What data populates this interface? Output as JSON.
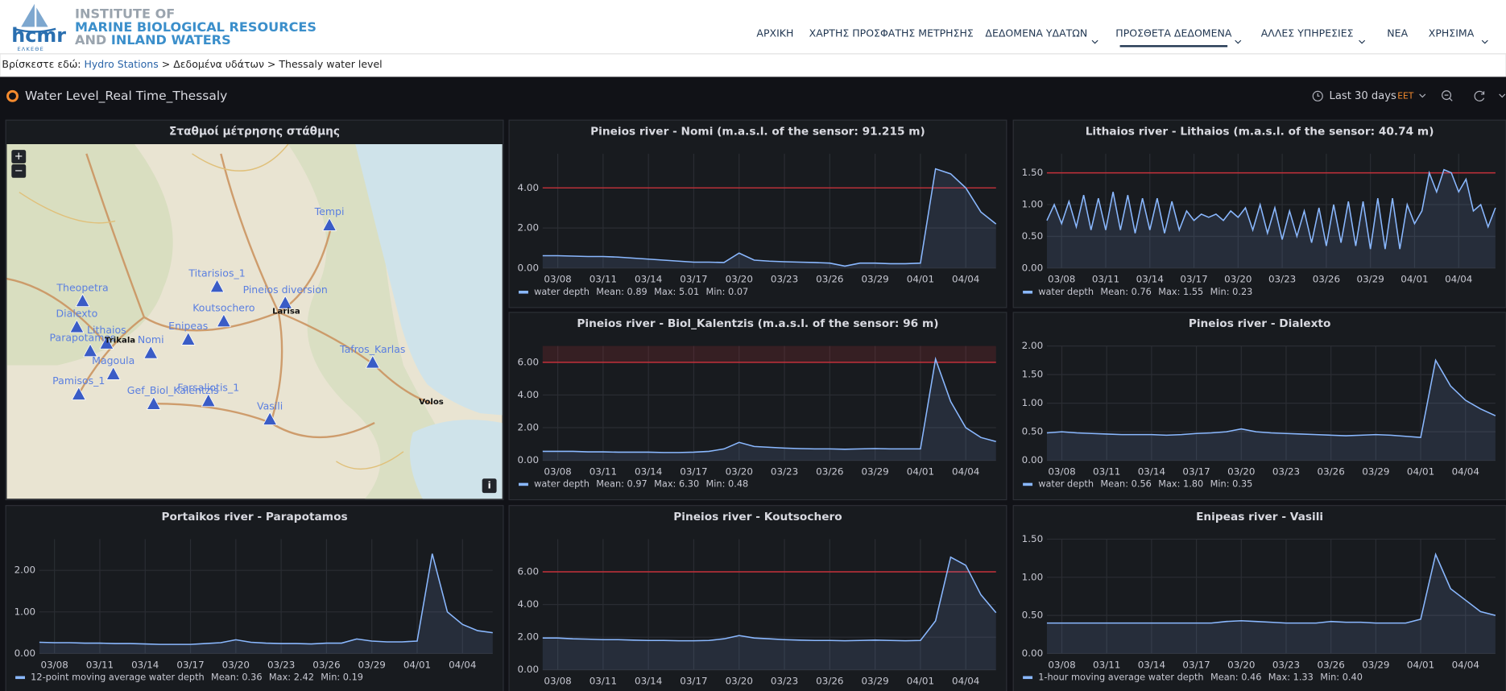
{
  "header": {
    "logo": "hcmr",
    "logo_sub": "ΕΛΚΕΘΕ",
    "line1": "INSTITUTE OF",
    "line2": "MARINE BIOLOGICAL RESOURCES",
    "line3a": "AND",
    "line3b": "INLAND WATERS",
    "nav": [
      "ΑΡΧΙΚΗ",
      "ΧΑΡΤΗΣ ΠΡΟΣΦΑΤΗΣ ΜΕΤΡΗΣΗΣ",
      "ΔΕΔΟΜΕΝΑ ΥΔΑΤΩΝ",
      "ΠΡΟΣΘΕΤΑ ΔΕΔΟΜΕΝΑ",
      "ΑΛΛΕΣ ΥΠΗΡΕΣΙΕΣ",
      "ΝΕΑ",
      "ΧΡΗΣΙΜΑ"
    ]
  },
  "breadcrumb": {
    "label": "Βρίσκεστε εδώ:",
    "items": [
      "Hydro Stations",
      "Δεδομένα υδάτων",
      "Thessaly water level"
    ],
    "separator": ">"
  },
  "dashboard": {
    "title": "Water Level_Real Time_Thessaly",
    "time_range": "Last 30 days",
    "timezone": "EET"
  },
  "map_panel": {
    "title": "Σταθμοί μέτρησης στάθμης",
    "zoom_in": "+",
    "zoom_out": "−",
    "info": "i",
    "stations": [
      "Tempi",
      "Theopetra",
      "Dialexto",
      "Titarisios_1",
      "Pineios diversion",
      "Koutsochero",
      "Enipeas",
      "Lithaios",
      "Parapotamos",
      "Nomi",
      "Magoula",
      "Tafros_Karlas",
      "Pamisos_1",
      "Gef_Biol_Kalentzis",
      "Farsaliotis_1",
      "Vasili"
    ],
    "cities": [
      "Larisa",
      "Volos",
      "Trikala"
    ]
  },
  "chart_data": [
    {
      "type": "line",
      "title": "Pineios river - Nomi (m.a.s.l. of the sensor: 91.215 m)",
      "categories": [
        null,
        "03/08",
        null,
        null,
        "03/11",
        null,
        null,
        "03/14",
        null,
        null,
        "03/17",
        null,
        null,
        "03/20",
        null,
        null,
        "03/23",
        null,
        null,
        "03/26",
        null,
        null,
        "03/29",
        null,
        null,
        "04/01",
        null,
        null,
        "04/04",
        null,
        null
      ],
      "series": [
        {
          "name": "water depth",
          "color": "#8ab8ff",
          "values": [
            0.62,
            0.62,
            0.6,
            0.58,
            0.58,
            0.55,
            0.5,
            0.45,
            0.4,
            0.35,
            0.3,
            0.3,
            0.28,
            0.75,
            0.4,
            0.35,
            0.32,
            0.3,
            0.28,
            0.25,
            0.1,
            0.25,
            0.25,
            0.22,
            0.22,
            0.25,
            4.95,
            4.7,
            4.0,
            2.8,
            2.2
          ]
        }
      ],
      "legend_stats": [
        "Mean: 0.89",
        "Max: 5.01",
        "Min: 0.07"
      ],
      "ylim": [
        0,
        5.7
      ],
      "yticks": [
        {
          "value": 0,
          "label": "0.00"
        },
        {
          "value": 2,
          "label": "2.00"
        },
        {
          "value": 4,
          "label": "4.00"
        }
      ],
      "threshold": 4,
      "threshold_color": "#c4313a",
      "threshold_region": false,
      "grid": true
    },
    {
      "type": "line",
      "title": "Lithaios river - Lithaios (m.a.s.l. of the sensor: 40.74 m)",
      "categories": [
        null,
        null,
        "03/08",
        null,
        null,
        null,
        null,
        null,
        "03/11",
        null,
        null,
        null,
        null,
        null,
        "03/14",
        null,
        null,
        null,
        null,
        null,
        "03/17",
        null,
        null,
        null,
        null,
        null,
        "03/20",
        null,
        null,
        null,
        null,
        null,
        "03/23",
        null,
        null,
        null,
        null,
        null,
        "03/26",
        null,
        null,
        null,
        null,
        null,
        "03/29",
        null,
        null,
        null,
        null,
        null,
        "04/01",
        null,
        null,
        null,
        null,
        null,
        "04/04",
        null,
        null,
        null,
        null,
        null
      ],
      "series": [
        {
          "name": "water depth",
          "color": "#8ab8ff",
          "values": [
            0.75,
            1.0,
            0.7,
            1.05,
            0.65,
            1.15,
            0.6,
            1.1,
            0.6,
            1.2,
            0.6,
            1.15,
            0.55,
            1.1,
            0.6,
            1.1,
            0.55,
            1.05,
            0.6,
            0.9,
            0.75,
            0.85,
            0.8,
            0.85,
            0.75,
            0.9,
            0.8,
            0.95,
            0.6,
            1.0,
            0.55,
            0.95,
            0.45,
            0.9,
            0.5,
            0.9,
            0.4,
            0.95,
            0.35,
            1.0,
            0.4,
            1.05,
            0.35,
            1.05,
            0.3,
            1.1,
            0.3,
            1.1,
            0.3,
            1.0,
            0.7,
            0.9,
            1.5,
            1.2,
            1.55,
            1.5,
            1.2,
            1.4,
            0.9,
            1.0,
            0.65,
            0.95
          ]
        }
      ],
      "legend_stats": [
        "Mean: 0.76",
        "Max: 1.55",
        "Min: 0.23"
      ],
      "ylim": [
        0,
        1.8
      ],
      "yticks": [
        {
          "value": 0,
          "label": "0.00"
        },
        {
          "value": 0.5,
          "label": "0.50"
        },
        {
          "value": 1,
          "label": "1.00"
        },
        {
          "value": 1.5,
          "label": "1.50"
        }
      ],
      "threshold": 1.5,
      "threshold_color": "#c4313a",
      "threshold_region": false,
      "grid": true
    },
    {
      "type": "line",
      "title": "Pineios river - Biol_Kalentzis (m.a.s.l. of the sensor: 96 m)",
      "categories": [
        null,
        "03/08",
        null,
        null,
        "03/11",
        null,
        null,
        "03/14",
        null,
        null,
        "03/17",
        null,
        null,
        "03/20",
        null,
        null,
        "03/23",
        null,
        null,
        "03/26",
        null,
        null,
        "03/29",
        null,
        null,
        "04/01",
        null,
        null,
        "04/04",
        null,
        null
      ],
      "series": [
        {
          "name": "water depth",
          "color": "#8ab8ff",
          "values": [
            0.55,
            0.55,
            0.55,
            0.52,
            0.52,
            0.5,
            0.5,
            0.5,
            0.48,
            0.48,
            0.5,
            0.55,
            0.7,
            1.1,
            0.85,
            0.8,
            0.75,
            0.72,
            0.7,
            0.7,
            0.68,
            0.7,
            0.72,
            0.7,
            0.7,
            0.7,
            6.2,
            3.6,
            2.0,
            1.4,
            1.15
          ]
        }
      ],
      "legend_stats": [
        "Mean: 0.97",
        "Max: 6.30",
        "Min: 0.48"
      ],
      "ylim": [
        0,
        7
      ],
      "yticks": [
        {
          "value": 0,
          "label": "0.00"
        },
        {
          "value": 2,
          "label": "2.00"
        },
        {
          "value": 4,
          "label": "4.00"
        },
        {
          "value": 6,
          "label": "6.00"
        }
      ],
      "threshold": 6,
      "threshold_color": "#c4313a",
      "threshold_region": true,
      "grid": true
    },
    {
      "type": "line",
      "title": "Pineios river - Dialexto",
      "categories": [
        null,
        "03/08",
        null,
        null,
        "03/11",
        null,
        null,
        "03/14",
        null,
        null,
        "03/17",
        null,
        null,
        "03/20",
        null,
        null,
        "03/23",
        null,
        null,
        "03/26",
        null,
        null,
        "03/29",
        null,
        null,
        "04/01",
        null,
        null,
        "04/04",
        null,
        null
      ],
      "series": [
        {
          "name": "water depth",
          "color": "#8ab8ff",
          "values": [
            0.48,
            0.5,
            0.48,
            0.47,
            0.46,
            0.45,
            0.45,
            0.45,
            0.44,
            0.45,
            0.47,
            0.48,
            0.5,
            0.55,
            0.5,
            0.48,
            0.47,
            0.46,
            0.45,
            0.44,
            0.43,
            0.44,
            0.45,
            0.44,
            0.42,
            0.4,
            1.75,
            1.3,
            1.05,
            0.9,
            0.78
          ]
        }
      ],
      "legend_stats": [
        "Mean: 0.56",
        "Max: 1.80",
        "Min: 0.35"
      ],
      "ylim": [
        0,
        2
      ],
      "yticks": [
        {
          "value": 0,
          "label": "0.00"
        },
        {
          "value": 0.5,
          "label": "0.50"
        },
        {
          "value": 1,
          "label": "1.00"
        },
        {
          "value": 1.5,
          "label": "1.50"
        },
        {
          "value": 2,
          "label": "2.00"
        }
      ],
      "grid": true
    },
    {
      "type": "line",
      "title": "Portaikos river - Parapotamos",
      "categories": [
        null,
        "03/08",
        null,
        null,
        "03/11",
        null,
        null,
        "03/14",
        null,
        null,
        "03/17",
        null,
        null,
        "03/20",
        null,
        null,
        "03/23",
        null,
        null,
        "03/26",
        null,
        null,
        "03/29",
        null,
        null,
        "04/01",
        null,
        null,
        "04/04",
        null,
        null
      ],
      "series": [
        {
          "name": "12-point moving average water depth",
          "color": "#8ab8ff",
          "values": [
            0.27,
            0.26,
            0.26,
            0.25,
            0.25,
            0.24,
            0.24,
            0.23,
            0.22,
            0.22,
            0.22,
            0.24,
            0.26,
            0.33,
            0.27,
            0.25,
            0.24,
            0.24,
            0.23,
            0.25,
            0.25,
            0.35,
            0.3,
            0.28,
            0.28,
            0.3,
            2.4,
            1.0,
            0.7,
            0.55,
            0.5
          ]
        }
      ],
      "legend_stats": [
        "Mean: 0.36",
        "Max: 2.42",
        "Min: 0.19"
      ],
      "ylim": [
        0,
        2.75
      ],
      "yticks": [
        {
          "value": 0,
          "label": "0.00"
        },
        {
          "value": 1,
          "label": "1.00"
        },
        {
          "value": 2,
          "label": "2.00"
        }
      ],
      "grid": true
    },
    {
      "type": "line",
      "title": "Pineios river - Koutsochero",
      "categories": [
        null,
        "03/08",
        null,
        null,
        "03/11",
        null,
        null,
        "03/14",
        null,
        null,
        "03/17",
        null,
        null,
        "03/20",
        null,
        null,
        "03/23",
        null,
        null,
        "03/26",
        null,
        null,
        "03/29",
        null,
        null,
        "04/01",
        null,
        null,
        "04/04",
        null,
        null
      ],
      "series": [
        {
          "color": "#8ab8ff",
          "values": [
            1.95,
            1.95,
            1.9,
            1.88,
            1.85,
            1.85,
            1.82,
            1.8,
            1.8,
            1.78,
            1.78,
            1.8,
            1.9,
            2.1,
            1.95,
            1.9,
            1.85,
            1.82,
            1.8,
            1.8,
            1.78,
            1.8,
            1.82,
            1.8,
            1.78,
            1.8,
            3.0,
            6.9,
            6.4,
            4.6,
            3.5
          ]
        }
      ],
      "ylim": [
        0,
        8
      ],
      "yticks": [
        {
          "value": 0,
          "label": "0.00"
        },
        {
          "value": 2,
          "label": "2.00"
        },
        {
          "value": 4,
          "label": "4.00"
        },
        {
          "value": 6,
          "label": "6.00"
        }
      ],
      "threshold": 6,
      "threshold_color": "#c4313a",
      "threshold_region": false,
      "grid": true
    },
    {
      "type": "line",
      "title": "Enipeas river - Vasili",
      "categories": [
        null,
        "03/08",
        null,
        null,
        "03/11",
        null,
        null,
        "03/14",
        null,
        null,
        "03/17",
        null,
        null,
        "03/20",
        null,
        null,
        "03/23",
        null,
        null,
        "03/26",
        null,
        null,
        "03/29",
        null,
        null,
        "04/01",
        null,
        null,
        "04/04",
        null,
        null
      ],
      "series": [
        {
          "name": "1-hour moving average water depth",
          "color": "#8ab8ff",
          "values": [
            0.4,
            0.4,
            0.4,
            0.4,
            0.4,
            0.4,
            0.4,
            0.4,
            0.4,
            0.4,
            0.4,
            0.4,
            0.42,
            0.43,
            0.42,
            0.41,
            0.4,
            0.4,
            0.4,
            0.42,
            0.41,
            0.41,
            0.4,
            0.4,
            0.4,
            0.45,
            1.3,
            0.85,
            0.7,
            0.55,
            0.5
          ]
        }
      ],
      "legend_stats": [
        "Mean: 0.46",
        "Max: 1.33",
        "Min: 0.40"
      ],
      "ylim": [
        0,
        1.5
      ],
      "yticks": [
        {
          "value": 0,
          "label": "0.00"
        },
        {
          "value": 0.5,
          "label": "0.50"
        },
        {
          "value": 1,
          "label": "1.00"
        },
        {
          "value": 1.5,
          "label": "1.50"
        }
      ],
      "grid": true
    }
  ]
}
